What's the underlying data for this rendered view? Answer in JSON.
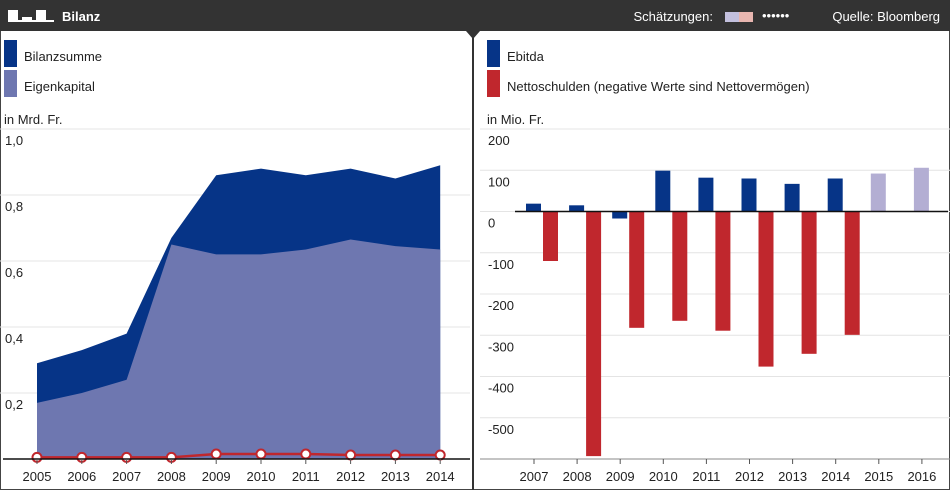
{
  "header": {
    "title": "Bilanz",
    "estimates_label": "Schätzungen:",
    "estimate_swatches": [
      "#c3c0de",
      "#e8b6b0"
    ],
    "dots": "••••••",
    "source": "Quelle: Bloomberg"
  },
  "chart_data": [
    {
      "type": "area",
      "unit_label": "in Mrd. Fr.",
      "categories": [
        "2005",
        "2006",
        "2007",
        "2008",
        "2009",
        "2010",
        "2011",
        "2012",
        "2013",
        "2014"
      ],
      "series": [
        {
          "name": "Bilanzsumme",
          "color": "#063487",
          "values": [
            0.29,
            0.33,
            0.38,
            0.67,
            0.86,
            0.88,
            0.86,
            0.88,
            0.85,
            0.89
          ]
        },
        {
          "name": "Eigenkapital",
          "color": "#6e77b0",
          "values": [
            0.17,
            0.2,
            0.24,
            0.65,
            0.62,
            0.62,
            0.635,
            0.665,
            0.645,
            0.635
          ]
        },
        {
          "color": "#c0272d",
          "style": "line-markers",
          "values": [
            0.005,
            0.005,
            0.005,
            0.005,
            0.015,
            0.015,
            0.015,
            0.012,
            0.012,
            0.012
          ]
        }
      ],
      "ylim": [
        0,
        1
      ],
      "yticks": [
        {
          "value": 0.2,
          "label": "0,2"
        },
        {
          "value": 0.4,
          "label": "0,4"
        },
        {
          "value": 0.6,
          "label": "0,6"
        },
        {
          "value": 0.8,
          "label": "0,8"
        },
        {
          "value": 1,
          "label": "1,0"
        }
      ],
      "grid": true
    },
    {
      "type": "bar",
      "unit_label": "in Mio. Fr.",
      "categories": [
        "2007",
        "2008",
        "2009",
        "2010",
        "2011",
        "2012",
        "2013",
        "2014",
        "2015",
        "2016"
      ],
      "series": [
        {
          "name": "Ebitda",
          "color": "#063487",
          "colors": [
            "#063487",
            "#063487",
            "#063487",
            "#063487",
            "#063487",
            "#063487",
            "#063487",
            "#063487",
            "#b3aed3",
            "#b3aed3"
          ],
          "values": [
            19,
            15,
            -17,
            99,
            82,
            80,
            67,
            80,
            92,
            106
          ]
        },
        {
          "name": "Nettoschulden (negative Werte sind Nettovermögen)",
          "color": "#c0272d",
          "values": [
            -120,
            -593,
            -282,
            -265,
            -289,
            -376,
            -345,
            -299,
            null,
            null
          ]
        }
      ],
      "ylim": [
        -600,
        200
      ],
      "yticks": [
        -500,
        -400,
        -300,
        -200,
        -100,
        0,
        100,
        200
      ],
      "grid": true
    }
  ]
}
